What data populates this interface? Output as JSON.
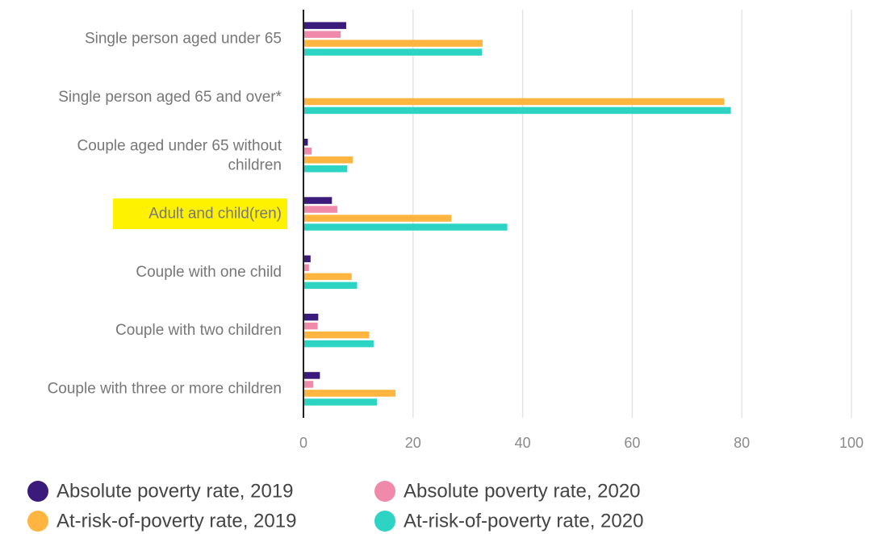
{
  "chart_data": {
    "type": "bar",
    "orientation": "horizontal",
    "title": "",
    "xlabel": "",
    "ylabel": "",
    "xlim": [
      0,
      100
    ],
    "xticks": [
      0,
      20,
      40,
      60,
      80,
      100
    ],
    "grid": true,
    "legend_position": "bottom",
    "categories": [
      [
        "Single person aged under 65"
      ],
      [
        "Single person aged 65 and over*"
      ],
      [
        "Couple aged under 65 without",
        "children"
      ],
      [
        "Adult and child(ren)"
      ],
      [
        "Couple with one child"
      ],
      [
        "Couple with two children"
      ],
      [
        "Couple with three or more children"
      ]
    ],
    "highlighted_category_index": 3,
    "highlight_color": "#fff200",
    "series": [
      {
        "name": "Absolute poverty rate, 2019",
        "color": "#3a1a7a",
        "values": [
          7.8,
          0,
          0.8,
          5.2,
          1.3,
          2.7,
          3.0
        ]
      },
      {
        "name": "Absolute poverty rate, 2020",
        "color": "#f08aaa",
        "values": [
          6.8,
          0,
          1.5,
          6.2,
          1.0,
          2.6,
          1.8
        ]
      },
      {
        "name": "At-risk-of-poverty rate, 2019",
        "color": "#ffb53f",
        "values": [
          32.7,
          76.8,
          9.0,
          27.0,
          8.8,
          12.0,
          16.8
        ]
      },
      {
        "name": "At-risk-of-poverty rate, 2020",
        "color": "#2dd4c4",
        "values": [
          32.6,
          78.0,
          8.0,
          37.2,
          9.8,
          12.8,
          13.4
        ]
      }
    ]
  }
}
